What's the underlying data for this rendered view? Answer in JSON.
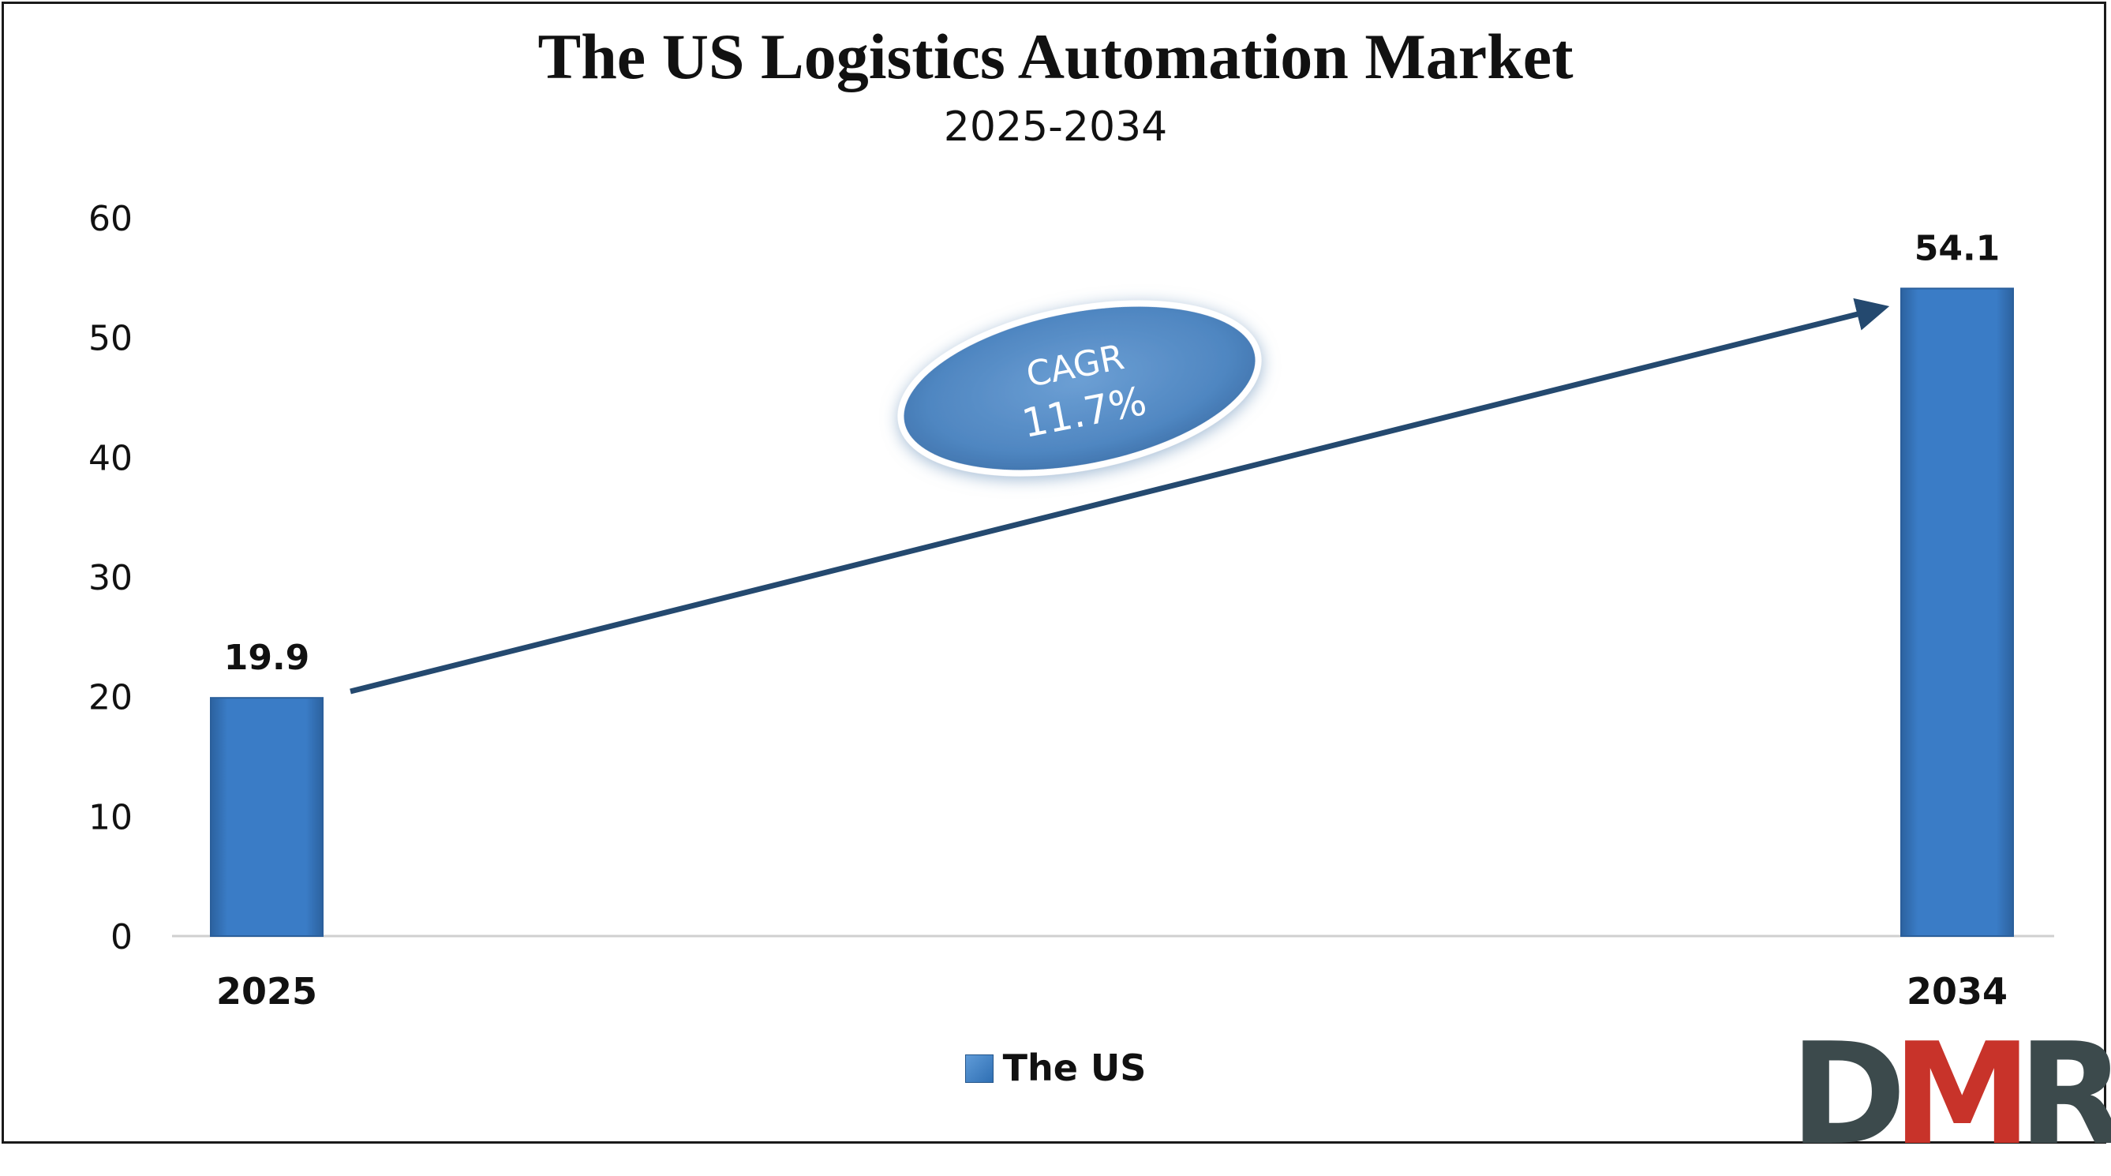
{
  "chart_data": {
    "type": "bar",
    "title": "The US Logistics Automation Market",
    "subtitle": "2025-2034",
    "categories": [
      "2025",
      "2034"
    ],
    "series": [
      {
        "name": "The US",
        "values": [
          19.9,
          54.1
        ]
      }
    ],
    "data_labels": [
      "19.9",
      "54.1"
    ],
    "ylim": [
      0,
      60
    ],
    "yticks": [
      0,
      10,
      20,
      30,
      40,
      50,
      60
    ],
    "grid": false,
    "legend_position": "bottom-center",
    "annotation": {
      "line1": "CAGR",
      "line2": "11.7%"
    },
    "colors": {
      "bar": "#3a7cc6",
      "bar_dark": "#2b5f9b",
      "arrow": "#24496f",
      "ellipse": "#5a8fca",
      "axis": "#d0d0d0"
    }
  },
  "logo": {
    "text": "DMR",
    "part1": "D",
    "part2": "M",
    "part3": "R",
    "color_dark": "#3c4a4c",
    "color_accent": "#c8332a"
  }
}
